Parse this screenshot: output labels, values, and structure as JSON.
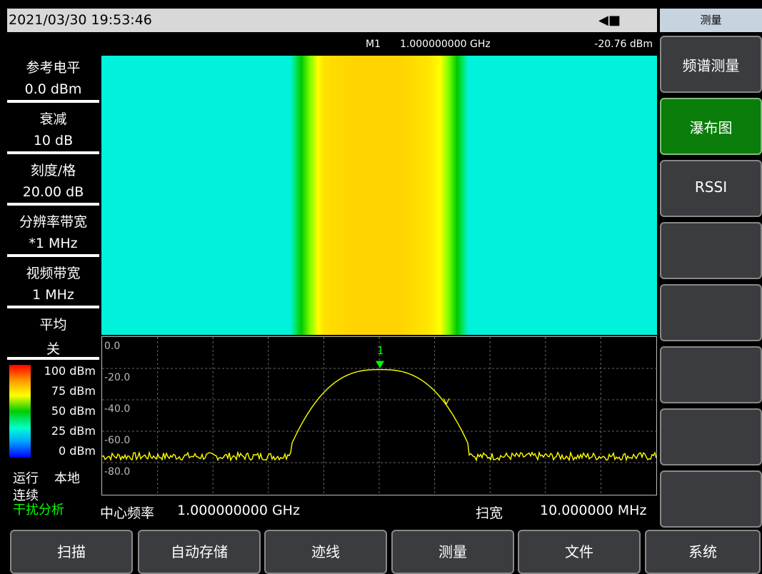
{
  "topbar": {
    "datetime": "2021/03/30  19:53:46",
    "power_icon": "plug-icon"
  },
  "marker": {
    "label": "M1",
    "freq": "1.000000000 GHz",
    "amp": "-20.76 dBm"
  },
  "params": [
    {
      "label": "参考电平",
      "value": "0.0 dBm"
    },
    {
      "label": "衰减",
      "value": "10 dB"
    },
    {
      "label": "刻度/格",
      "value": "20.00 dB"
    },
    {
      "label": "分辨率带宽",
      "value": "*1 MHz"
    },
    {
      "label": "视频带宽",
      "value": "1 MHz"
    },
    {
      "label": "平均",
      "value": "关"
    }
  ],
  "colorbar": {
    "labels": [
      "100 dBm",
      "75 dBm",
      "50 dBm",
      "25 dBm",
      "0 dBm"
    ]
  },
  "status": {
    "run": "运行",
    "local": "本地",
    "mode": "连续",
    "analysis": "干扰分析",
    "analysis_color": "#00ff00"
  },
  "spectrum": {
    "y_labels": [
      "0.0",
      "-20.0",
      "-40.0",
      "-60.0",
      "-80.0"
    ],
    "marker_number": "1",
    "trace_color": "#ffff00",
    "marker_color": "#00ff00"
  },
  "footer": {
    "center_label": "中心频率",
    "center_value": "1.000000000 GHz",
    "span_label": "扫宽",
    "span_value": "10.000000 MHz"
  },
  "right_panel": {
    "title": "测量",
    "keys": [
      "频谱测量",
      "瀑布图",
      "RSSI",
      "",
      "",
      "",
      "",
      ""
    ],
    "active_index": 1
  },
  "bottom_buttons": [
    "扫描",
    "自动存储",
    "迹线",
    "测量",
    "文件",
    "系统"
  ],
  "colors": {
    "waterfall_bg": "#00f2dc",
    "waterfall_peak": "#ffd400",
    "active_key": "#0a7d0a"
  }
}
